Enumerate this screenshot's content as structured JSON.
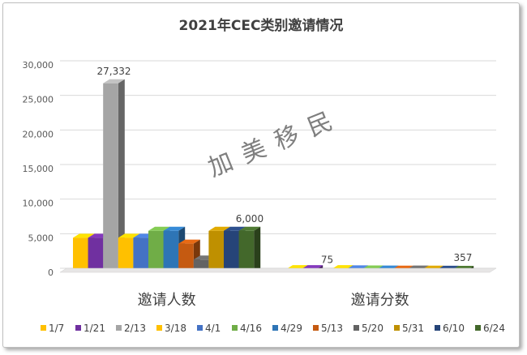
{
  "chart_data": {
    "type": "bar",
    "title": "2021年CEC类别邀请情况",
    "watermark": "加美移民",
    "categories": [
      "邀请人数",
      "邀请分数"
    ],
    "ylim": [
      0,
      30000
    ],
    "yticks": [
      "0",
      "5,000",
      "10,000",
      "15,000",
      "20,000",
      "25,000",
      "30,000"
    ],
    "ytick_values": [
      0,
      5000,
      10000,
      15000,
      20000,
      25000,
      30000
    ],
    "grid": true,
    "legend_position": "bottom",
    "series": [
      {
        "name": "1/7",
        "color": "#FFC000",
        "values": [
          5000,
          460
        ]
      },
      {
        "name": "1/21",
        "color": "#7030A0",
        "values": [
          5000,
          454
        ]
      },
      {
        "name": "2/13",
        "color": "#A5A5A5",
        "values": [
          27332,
          75
        ]
      },
      {
        "name": "3/18",
        "color": "#FFC000",
        "values": [
          5000,
          449
        ]
      },
      {
        "name": "4/1",
        "color": "#4472C4",
        "values": [
          5000,
          432
        ]
      },
      {
        "name": "4/16",
        "color": "#70AD47",
        "values": [
          6000,
          417
        ]
      },
      {
        "name": "4/29",
        "color": "#2E75B6",
        "values": [
          6000,
          400
        ]
      },
      {
        "name": "5/13",
        "color": "#C55A11",
        "values": [
          4147,
          380
        ]
      },
      {
        "name": "5/20",
        "color": "#636363",
        "values": [
          1842,
          397
        ]
      },
      {
        "name": "5/31",
        "color": "#BF9000",
        "values": [
          6000,
          380
        ]
      },
      {
        "name": "6/10",
        "color": "#264478",
        "values": [
          6000,
          368
        ]
      },
      {
        "name": "6/24",
        "color": "#43682B",
        "values": [
          6000,
          357
        ]
      }
    ],
    "data_labels": [
      {
        "category": 0,
        "series": 2,
        "text": "27,332"
      },
      {
        "category": 0,
        "series": 11,
        "text": "6,000"
      },
      {
        "category": 1,
        "series": 2,
        "text": "75"
      },
      {
        "category": 1,
        "series": 11,
        "text": "357"
      }
    ]
  }
}
